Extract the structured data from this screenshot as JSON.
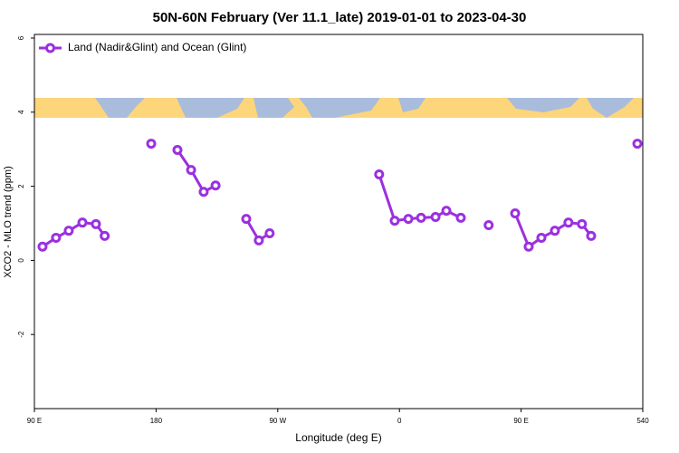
{
  "chart_data": {
    "type": "line",
    "title": "50N-60N February (Ver 11.1_late)   2019-01-01 to 2023-04-30",
    "x_label": "Longitude (deg E)",
    "y_label": "XCO2 - MLO trend (ppm)",
    "legend_position": "upper left",
    "x": [
      96,
      106,
      115.4,
      125.5,
      135.5,
      142,
      null,
      176.4,
      null,
      195.8,
      205.9,
      215.2,
      224,
      null,
      246.7,
      256,
      264,
      null,
      345,
      356.5,
      366.6,
      376,
      386.7,
      394.7,
      405.4,
      null,
      426,
      null,
      445.6,
      455.6,
      465,
      475,
      485,
      495,
      501.8,
      null,
      536
    ],
    "series": [
      {
        "name": "Land (Nadir&Glint) and Ocean (Glint)",
        "color": "#9b30e0",
        "values": [
          0.37,
          0.61,
          0.8,
          1.02,
          0.98,
          0.66,
          null,
          3.15,
          null,
          2.98,
          2.44,
          1.85,
          2.02,
          null,
          1.12,
          0.54,
          0.73,
          null,
          2.32,
          1.07,
          1.12,
          1.15,
          1.17,
          1.34,
          1.15,
          null,
          0.95,
          null,
          1.27,
          0.37,
          0.61,
          0.8,
          1.02,
          0.98,
          0.66,
          null,
          3.15
        ]
      }
    ],
    "xlim": [
      90,
      540
    ],
    "xticks": [
      {
        "value": 90,
        "label": "90 E"
      },
      180,
      {
        "value": 270,
        "label": "90 W"
      },
      {
        "value": 360,
        "label": "0"
      },
      {
        "value": 450,
        "label": "90 E"
      },
      540
    ],
    "ylim": [
      -4,
      6
    ],
    "yticks": [
      -2,
      0,
      2,
      4,
      6
    ]
  }
}
